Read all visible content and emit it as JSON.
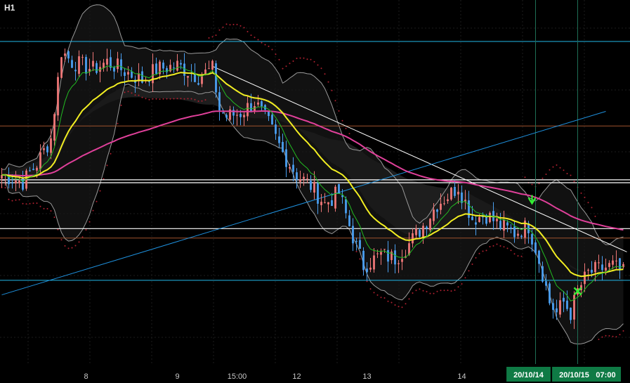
{
  "timeframe": "H1",
  "colors": {
    "background": "#000000",
    "grid": "#1c1c1c",
    "bull": "#ee7777",
    "bear": "#4a9ff0",
    "ema_fast": "#22bb22",
    "ema_mid": "#f2ee22",
    "ema_slow": "#e0409a",
    "bollinger": "#9a9a9a",
    "cloud_fill": "#262626",
    "hline_cyan": "#22b8e8",
    "hline_orange": "#a0522d",
    "hline_white": "#ffffff",
    "trendline_white": "#ffffff",
    "trendline_blue": "#1e90dd",
    "vline": "#1e6e55",
    "psar": "#b02030",
    "badge_bg": "#0f7a45",
    "signal_arrow": "#33ee33"
  },
  "chart_data": {
    "type": "candlestick",
    "x_ticks": [
      "8",
      "9",
      "15:00",
      "12",
      "13",
      "14",
      "20/10/14",
      "20/10/15",
      "07:00"
    ],
    "x_tick_index": [
      24,
      50,
      67,
      84,
      104,
      131,
      150,
      163,
      172
    ],
    "highlighted_ticks": [
      "20/10/14",
      "20/10/15",
      "07:00"
    ],
    "y_range": [
      0,
      100
    ],
    "vertical_lines_at_index": [
      152,
      164
    ],
    "horizontal_levels": [
      {
        "y": 88.6,
        "color": "cyan"
      },
      {
        "y": 65.4,
        "color": "orange"
      },
      {
        "y": 50.6,
        "color": "white"
      },
      {
        "y": 49.8,
        "color": "white"
      },
      {
        "y": 37.2,
        "color": "white"
      },
      {
        "y": 34.6,
        "color": "orange"
      },
      {
        "y": 23.0,
        "color": "cyan"
      }
    ],
    "trendlines": [
      {
        "color": "white",
        "points": [
          [
            60,
            81.8
          ],
          [
            178,
            30.8
          ]
        ]
      },
      {
        "color": "blue",
        "points": [
          [
            0,
            19.0
          ],
          [
            172,
            69.4
          ]
        ]
      }
    ],
    "signals": [
      {
        "type": "down-arrow",
        "index": 151,
        "y": 44.5
      },
      {
        "type": "cross",
        "index": 164,
        "y": 20.0
      }
    ],
    "anchors": [
      [
        0,
        52
      ],
      [
        6,
        50
      ],
      [
        10,
        55
      ],
      [
        14,
        62
      ],
      [
        17,
        86
      ],
      [
        20,
        83
      ],
      [
        26,
        81
      ],
      [
        30,
        83
      ],
      [
        36,
        80
      ],
      [
        40,
        78
      ],
      [
        44,
        81
      ],
      [
        50,
        82
      ],
      [
        56,
        79
      ],
      [
        60,
        81
      ],
      [
        62,
        70
      ],
      [
        64,
        68
      ],
      [
        68,
        69
      ],
      [
        72,
        72
      ],
      [
        76,
        66
      ],
      [
        80,
        58
      ],
      [
        84,
        52
      ],
      [
        88,
        49
      ],
      [
        92,
        44
      ],
      [
        96,
        47
      ],
      [
        100,
        35
      ],
      [
        103,
        27
      ],
      [
        108,
        30
      ],
      [
        112,
        29
      ],
      [
        116,
        33
      ],
      [
        120,
        38
      ],
      [
        124,
        44
      ],
      [
        128,
        47
      ],
      [
        130,
        49
      ],
      [
        134,
        40
      ],
      [
        138,
        41
      ],
      [
        142,
        38
      ],
      [
        146,
        36
      ],
      [
        150,
        38
      ],
      [
        152,
        32
      ],
      [
        154,
        25
      ],
      [
        156,
        17
      ],
      [
        158,
        14
      ],
      [
        160,
        17
      ],
      [
        162,
        14
      ],
      [
        164,
        20
      ],
      [
        167,
        25
      ],
      [
        170,
        26
      ],
      [
        174,
        27
      ],
      [
        177,
        25
      ]
    ],
    "candle_count": 178
  }
}
